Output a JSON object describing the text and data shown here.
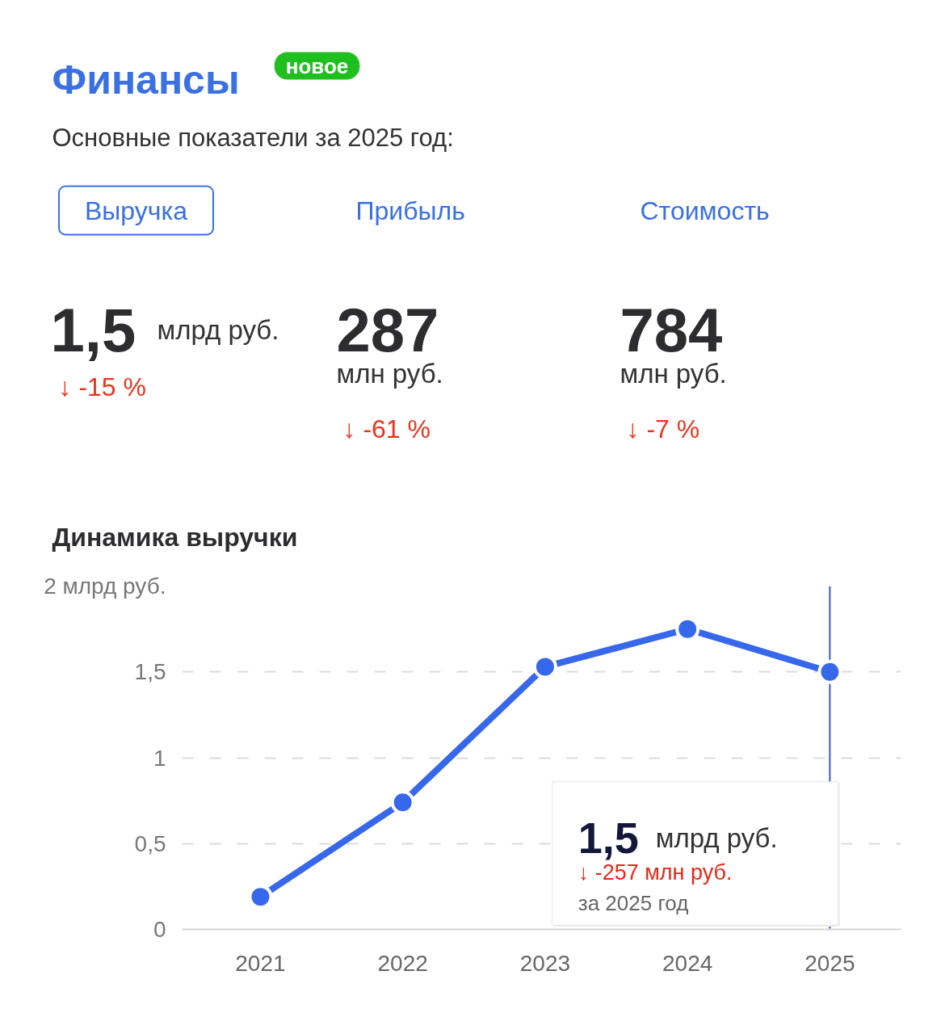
{
  "chart_data": [
    {
      "type": "other",
      "title": "Финансы",
      "subtitle": "Основные показатели за 2025 год:",
      "annotations": [
        "новое",
        "Выручка",
        "Прибыль",
        "Стоимость",
        "1,5",
        "млрд руб.",
        "↓ -15 %",
        "287",
        "млн руб.",
        "↓ -61 %",
        "784",
        "млн руб.",
        "↓ -7 %"
      ]
    },
    {
      "type": "line",
      "title": "Динамика выручки",
      "categories": [
        "2021",
        "2022",
        "2023",
        "2024",
        "2025"
      ],
      "series": [
        {
          "color": "#3768ec",
          "values": [
            0.19,
            0.74,
            1.53,
            1.75,
            1.5
          ]
        }
      ],
      "ylim": [
        0,
        2
      ],
      "yticks": [
        0,
        {
          "value": 0.5,
          "label": "0,5"
        },
        1,
        {
          "value": 1.5,
          "label": "1,5"
        },
        {
          "value": 2,
          "label": "2 млрд руб."
        }
      ],
      "grid": "y",
      "marker": "circle",
      "line_style": "solid",
      "ref_lines": [
        {
          "axis": "x",
          "value": "2025",
          "color": "#2f5fd0"
        }
      ],
      "annotations": [
        "1,5",
        "млрд руб.",
        "↓ -257 млн руб.",
        "за 2025 год"
      ]
    }
  ]
}
